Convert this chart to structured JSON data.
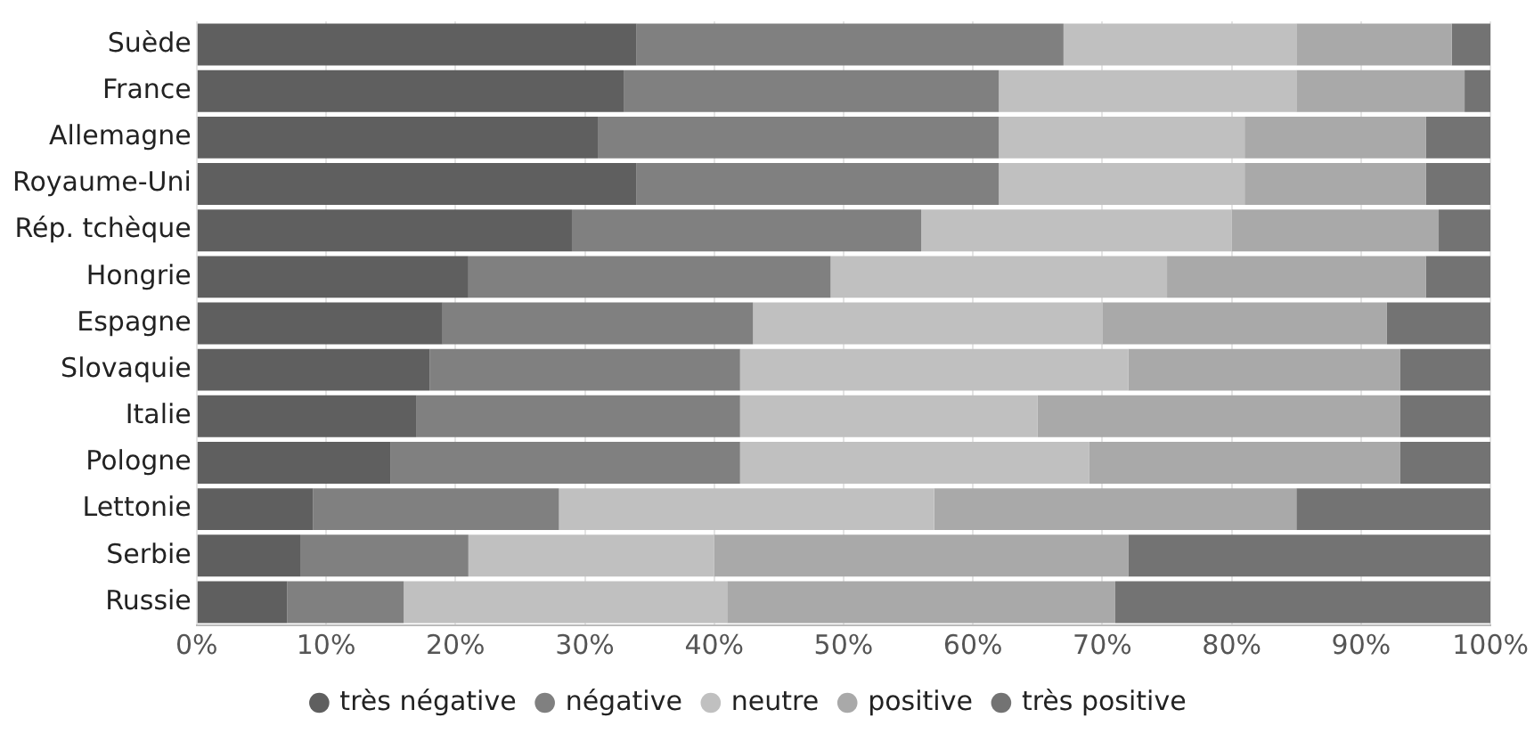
{
  "chart_data": {
    "type": "bar",
    "orientation": "horizontal",
    "stacked": true,
    "categories": [
      "Suède",
      "France",
      "Allemagne",
      "Royaume-Uni",
      "Rép. tchèque",
      "Hongrie",
      "Espagne",
      "Slovaquie",
      "Italie",
      "Pologne",
      "Lettonie",
      "Serbie",
      "Russie"
    ],
    "series": [
      {
        "name": "très négative",
        "color": "#5f5f5f",
        "values": [
          34,
          33,
          31,
          34,
          29,
          21,
          19,
          18,
          17,
          15,
          9,
          8,
          7
        ]
      },
      {
        "name": "négative",
        "color": "#808080",
        "values": [
          33,
          29,
          31,
          28,
          27,
          28,
          24,
          24,
          25,
          27,
          19,
          13,
          9
        ]
      },
      {
        "name": "neutre",
        "color": "#c0c0c0",
        "values": [
          18,
          23,
          19,
          19,
          24,
          26,
          27,
          30,
          23,
          27,
          29,
          19,
          25
        ]
      },
      {
        "name": "positive",
        "color": "#a9a9a9",
        "values": [
          12,
          13,
          14,
          14,
          16,
          20,
          22,
          21,
          28,
          24,
          28,
          32,
          30
        ]
      },
      {
        "name": "très positive",
        "color": "#737373",
        "values": [
          3,
          2,
          5,
          5,
          4,
          5,
          8,
          7,
          7,
          7,
          15,
          28,
          29
        ]
      }
    ],
    "xlim": [
      0,
      100
    ],
    "xticks": [
      {
        "value": 0,
        "label": "0%"
      },
      {
        "value": 10,
        "label": "10%"
      },
      {
        "value": 20,
        "label": "20%"
      },
      {
        "value": 30,
        "label": "30%"
      },
      {
        "value": 40,
        "label": "40%"
      },
      {
        "value": 50,
        "label": "50%"
      },
      {
        "value": 60,
        "label": "60%"
      },
      {
        "value": 70,
        "label": "70%"
      },
      {
        "value": 80,
        "label": "80%"
      },
      {
        "value": 90,
        "label": "90%"
      },
      {
        "value": 100,
        "label": "100%"
      }
    ],
    "grid": "x",
    "legend": "bottom"
  }
}
